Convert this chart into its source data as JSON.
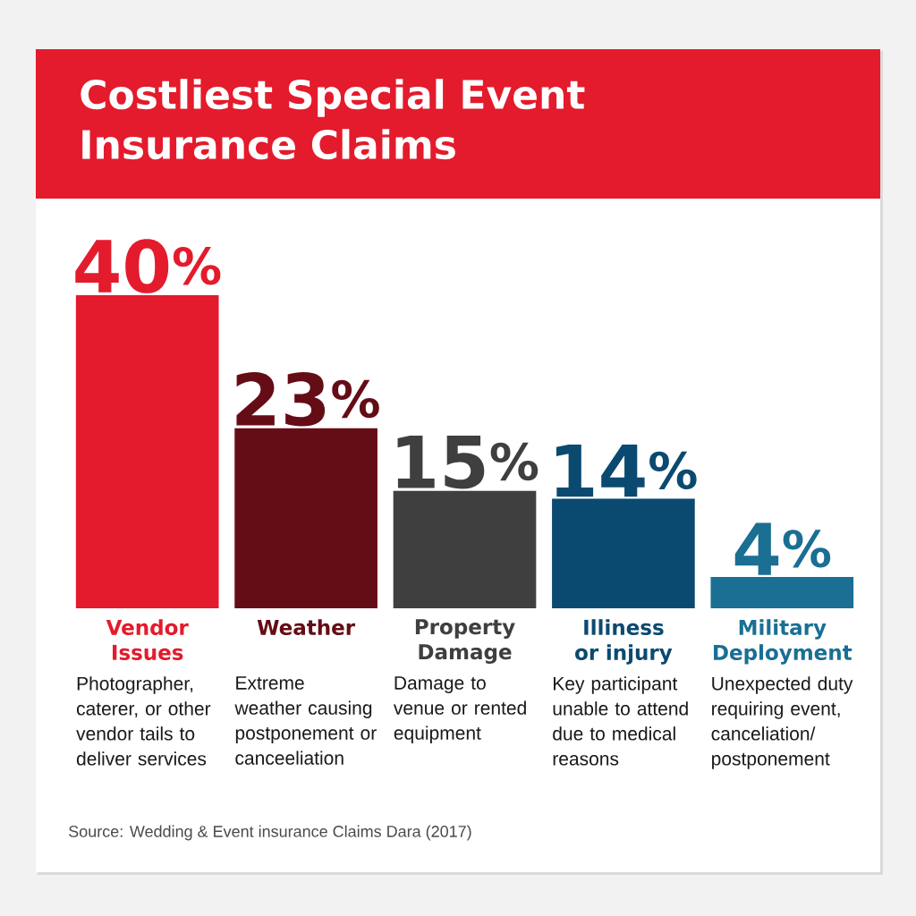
{
  "chart_data": {
    "type": "bar",
    "title": "Costliest Special Event Insurance Claims",
    "categories": [
      "Vendor Issues",
      "Weather",
      "Property Damage",
      "Illiness or injury",
      "Military Deployment"
    ],
    "values": [
      40,
      23,
      15,
      14,
      4
    ],
    "colors": [
      "#e31b2c",
      "#650d16",
      "#3f3f3f",
      "#0b4a70",
      "#1a6f93"
    ],
    "value_labels": [
      "40$^{%}$",
      "23$^{%}$",
      "15$^{%}$",
      "14$^{%}$",
      "4$^{%}$"
    ],
    "annotations": [
      "Photographer, caterer, or other vendor tails to deliver services",
      "Extreme weather causing postponement or canceeliation",
      "Damage to venue or rented equipment",
      "Key participant unable to attend due to medical reasons",
      "Unexpected duty requiring event, canceliation/ postponement",
      "Source: Wedding & Event insurance Claims Dara (2017)"
    ]
  }
}
